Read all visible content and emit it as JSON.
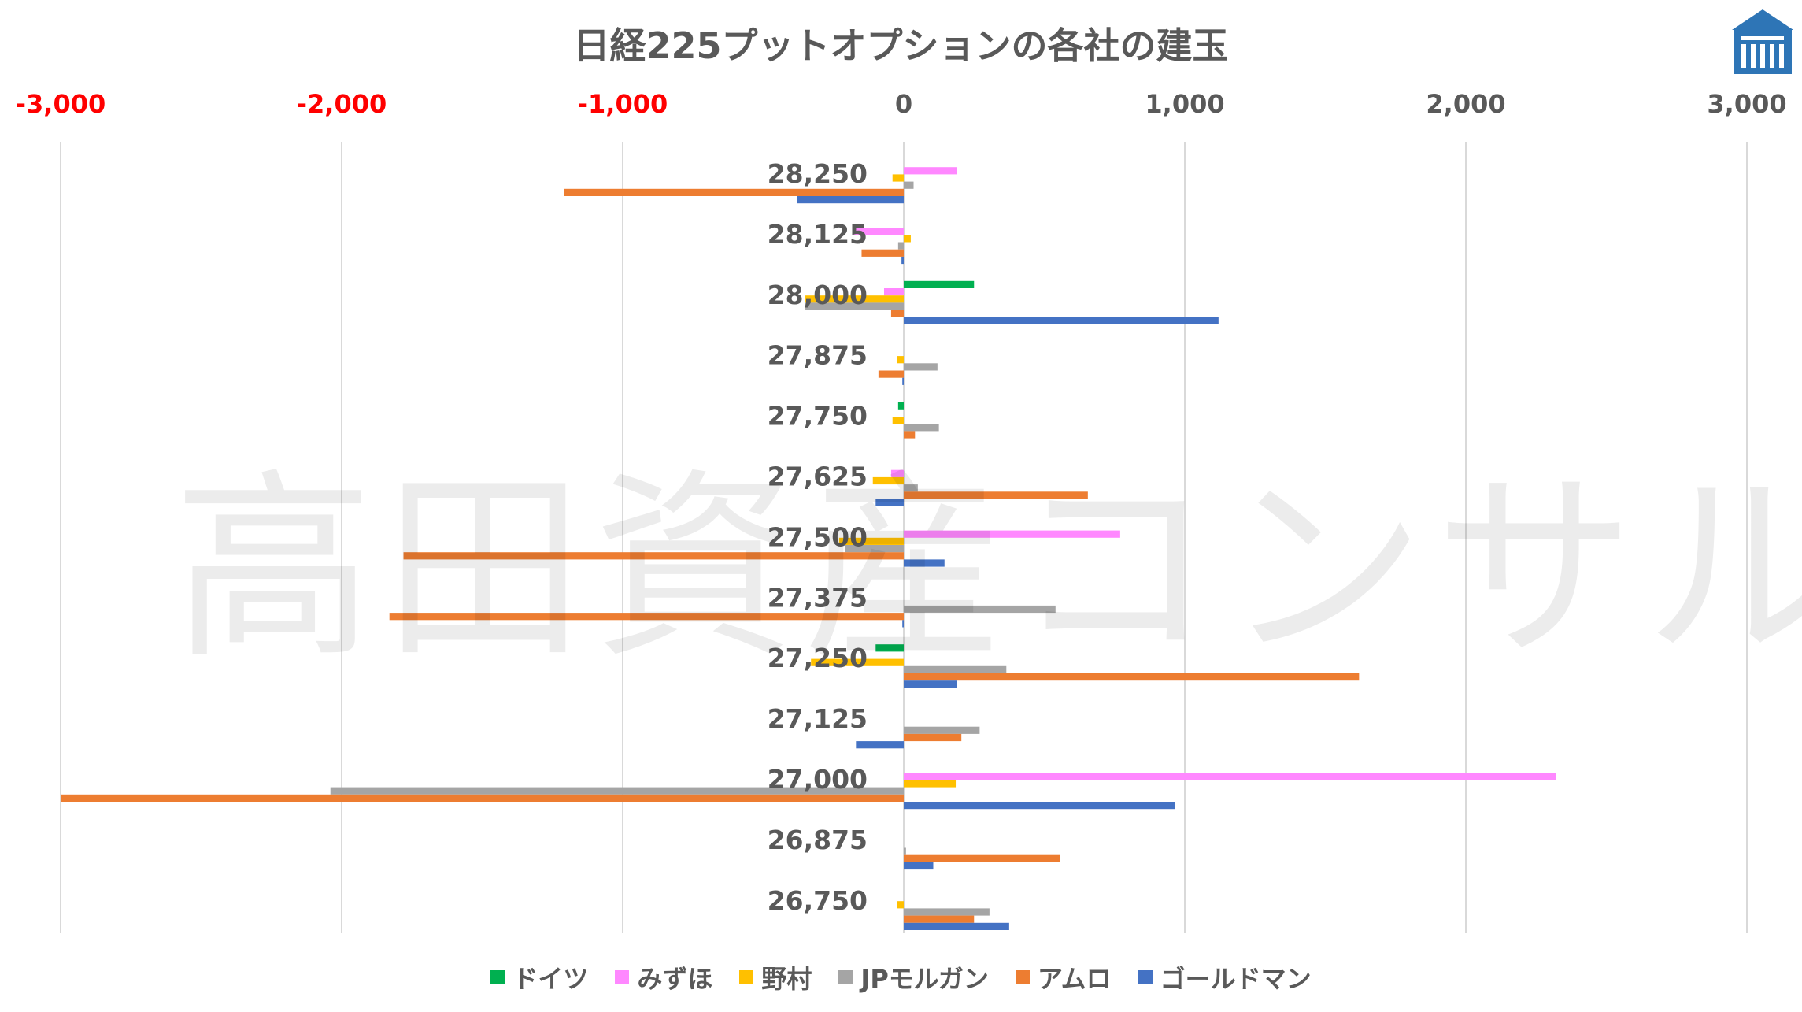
{
  "chart_data": {
    "type": "bar",
    "orientation": "horizontal",
    "title": "日経225プットオプションの各社の建玉",
    "xlim": [
      -3000,
      3000
    ],
    "x_ticks": [
      {
        "value": -3000,
        "label": "-3,000",
        "negative": true
      },
      {
        "value": -2000,
        "label": "-2,000",
        "negative": true
      },
      {
        "value": -1000,
        "label": "-1,000",
        "negative": true
      },
      {
        "value": 0,
        "label": "0",
        "negative": false
      },
      {
        "value": 1000,
        "label": "1,000",
        "negative": false
      },
      {
        "value": 2000,
        "label": "2,000",
        "negative": false
      },
      {
        "value": 3000,
        "label": "3,000",
        "negative": false
      }
    ],
    "negative_tick_color": "#FF0000",
    "positive_tick_color": "#595959",
    "grid_vertical": true,
    "legend_position": "bottom",
    "categories": [
      "28,250",
      "28,125",
      "28,000",
      "27,875",
      "27,750",
      "27,625",
      "27,500",
      "27,375",
      "27,250",
      "27,125",
      "27,000",
      "26,875",
      "26,750"
    ],
    "series": [
      {
        "name": "ドイツ",
        "color": "#00B050",
        "values": [
          0,
          0,
          250,
          0,
          -20,
          0,
          0,
          0,
          -100,
          0,
          0,
          0,
          0
        ]
      },
      {
        "name": "みずほ",
        "color": "#FF88FF",
        "values": [
          190,
          -180,
          -70,
          0,
          0,
          -45,
          770,
          0,
          0,
          0,
          2320,
          0,
          0
        ]
      },
      {
        "name": "野村",
        "color": "#FFC000",
        "values": [
          -40,
          25,
          -350,
          -25,
          -40,
          -110,
          -230,
          0,
          -330,
          0,
          185,
          0,
          -25
        ]
      },
      {
        "name": "JPモルガン",
        "color": "#A5A5A5",
        "values": [
          35,
          -20,
          -350,
          120,
          125,
          50,
          -210,
          540,
          365,
          270,
          -2040,
          8,
          305
        ]
      },
      {
        "name": "アムロ",
        "color": "#ED7D31",
        "values": [
          -1210,
          -150,
          -45,
          -90,
          40,
          655,
          -1780,
          -1830,
          1620,
          205,
          -3000,
          555,
          250
        ]
      },
      {
        "name": "ゴールドマン",
        "color": "#4472C4",
        "values": [
          -380,
          -8,
          1120,
          -5,
          0,
          -100,
          145,
          -5,
          190,
          -170,
          965,
          105,
          375
        ]
      }
    ]
  },
  "watermark": "高田資産コンサル",
  "logo": {
    "icon": "temple-icon",
    "color": "#2E75B6"
  }
}
